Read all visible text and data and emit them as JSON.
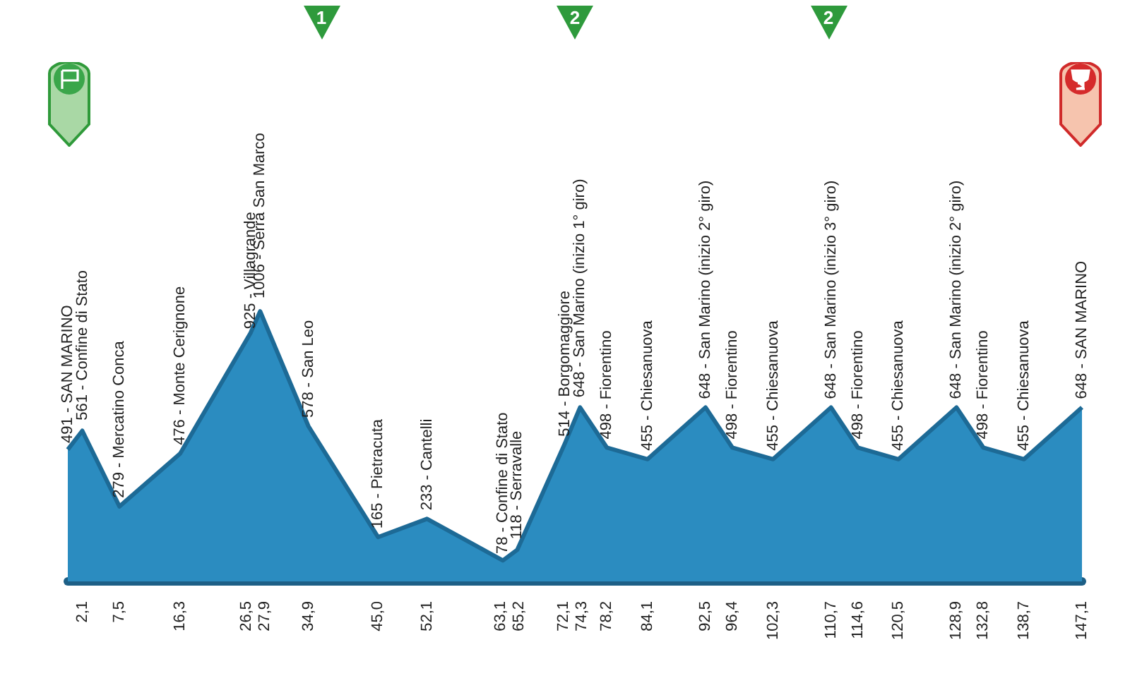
{
  "chart_data": {
    "type": "area",
    "color": "#2b8cc0",
    "marker": "none",
    "grid": false,
    "tick_labels": "x",
    "x": [
      0,
      2.1,
      7.5,
      16.3,
      26.5,
      27.9,
      34.9,
      45.0,
      52.1,
      63.1,
      65.2,
      72.1,
      74.3,
      78.2,
      84.1,
      92.5,
      96.4,
      102.3,
      110.7,
      114.6,
      120.5,
      128.9,
      132.8,
      138.7,
      147.1
    ],
    "values": [
      491,
      561,
      279,
      476,
      925,
      1006,
      578,
      165,
      233,
      78,
      118,
      514,
      648,
      498,
      455,
      648,
      498,
      455,
      648,
      498,
      455,
      648,
      498,
      455,
      648
    ],
    "value_labels": [
      "491 - SAN MARINO",
      "561 - Confine di Stato",
      "279 - Mercatino Conca",
      "476 - Monte Cerignone",
      "925 - Villagrande",
      "1006 - Serra San Marco",
      "578 - San Leo",
      "165 - Pietracuta",
      "233 - Cantelli",
      "78 - Confine di Stato",
      "118 - Serravalle",
      "514 - Borgomaggiore",
      "648 - San Marino (inizio 1° giro)",
      "498 - Fiorentino",
      "455 - Chiesanuova",
      "648 - San Marino (inizio 2° giro)",
      "498 - Fiorentino",
      "455 - Chiesanuova",
      "648 - San Marino (inizio 3° giro)",
      "498 - Fiorentino",
      "455 - Chiesanuova",
      "648 - San Marino (inizio 2° giro)",
      "498 - Fiorentino",
      "455 - Chiesanuova",
      "648 - SAN MARINO"
    ],
    "xlim": [
      0,
      147.1
    ],
    "xticks": [
      {
        "value": 2.1,
        "label": "2,1"
      },
      {
        "value": 7.5,
        "label": "7,5"
      },
      {
        "value": 16.3,
        "label": "16,3"
      },
      {
        "value": 26.5,
        "label": "26,5"
      },
      {
        "value": 27.9,
        "label": "27,9"
      },
      {
        "value": 34.9,
        "label": "34,9"
      },
      {
        "value": 45.0,
        "label": "45,0"
      },
      {
        "value": 52.1,
        "label": "52,1"
      },
      {
        "value": 63.1,
        "label": "63,1"
      },
      {
        "value": 65.2,
        "label": "65,2"
      },
      {
        "value": 72.1,
        "label": "72,1"
      },
      {
        "value": 74.3,
        "label": "74,3"
      },
      {
        "value": 78.2,
        "label": "78,2"
      },
      {
        "value": 84.1,
        "label": "84,1"
      },
      {
        "value": 92.5,
        "label": "92,5"
      },
      {
        "value": 96.4,
        "label": "96,4"
      },
      {
        "value": 102.3,
        "label": "102,3"
      },
      {
        "value": 110.7,
        "label": "110,7"
      },
      {
        "value": 114.6,
        "label": "114,6"
      },
      {
        "value": 120.5,
        "label": "120,5"
      },
      {
        "value": 128.9,
        "label": "128,9"
      },
      {
        "value": 132.8,
        "label": "132,8"
      },
      {
        "value": 138.7,
        "label": "138,7"
      },
      {
        "value": 147.1,
        "label": "147,1"
      }
    ],
    "annotations": [
      "1",
      "2",
      "2"
    ]
  }
}
